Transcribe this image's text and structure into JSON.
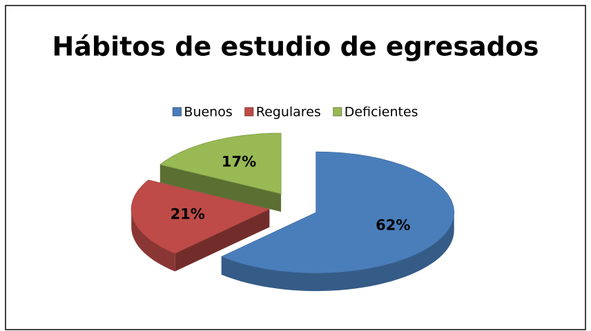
{
  "chart_data": {
    "type": "pie",
    "title": "Hábitos de estudio de egresados",
    "categories": [
      "Buenos",
      "Regulares",
      "Deficientes"
    ],
    "values": [
      62,
      21,
      17
    ],
    "value_labels": [
      "62%",
      "21%",
      "17%"
    ],
    "colors": [
      "#4a7ebb",
      "#be4b48",
      "#98b954"
    ],
    "legend": "top"
  }
}
